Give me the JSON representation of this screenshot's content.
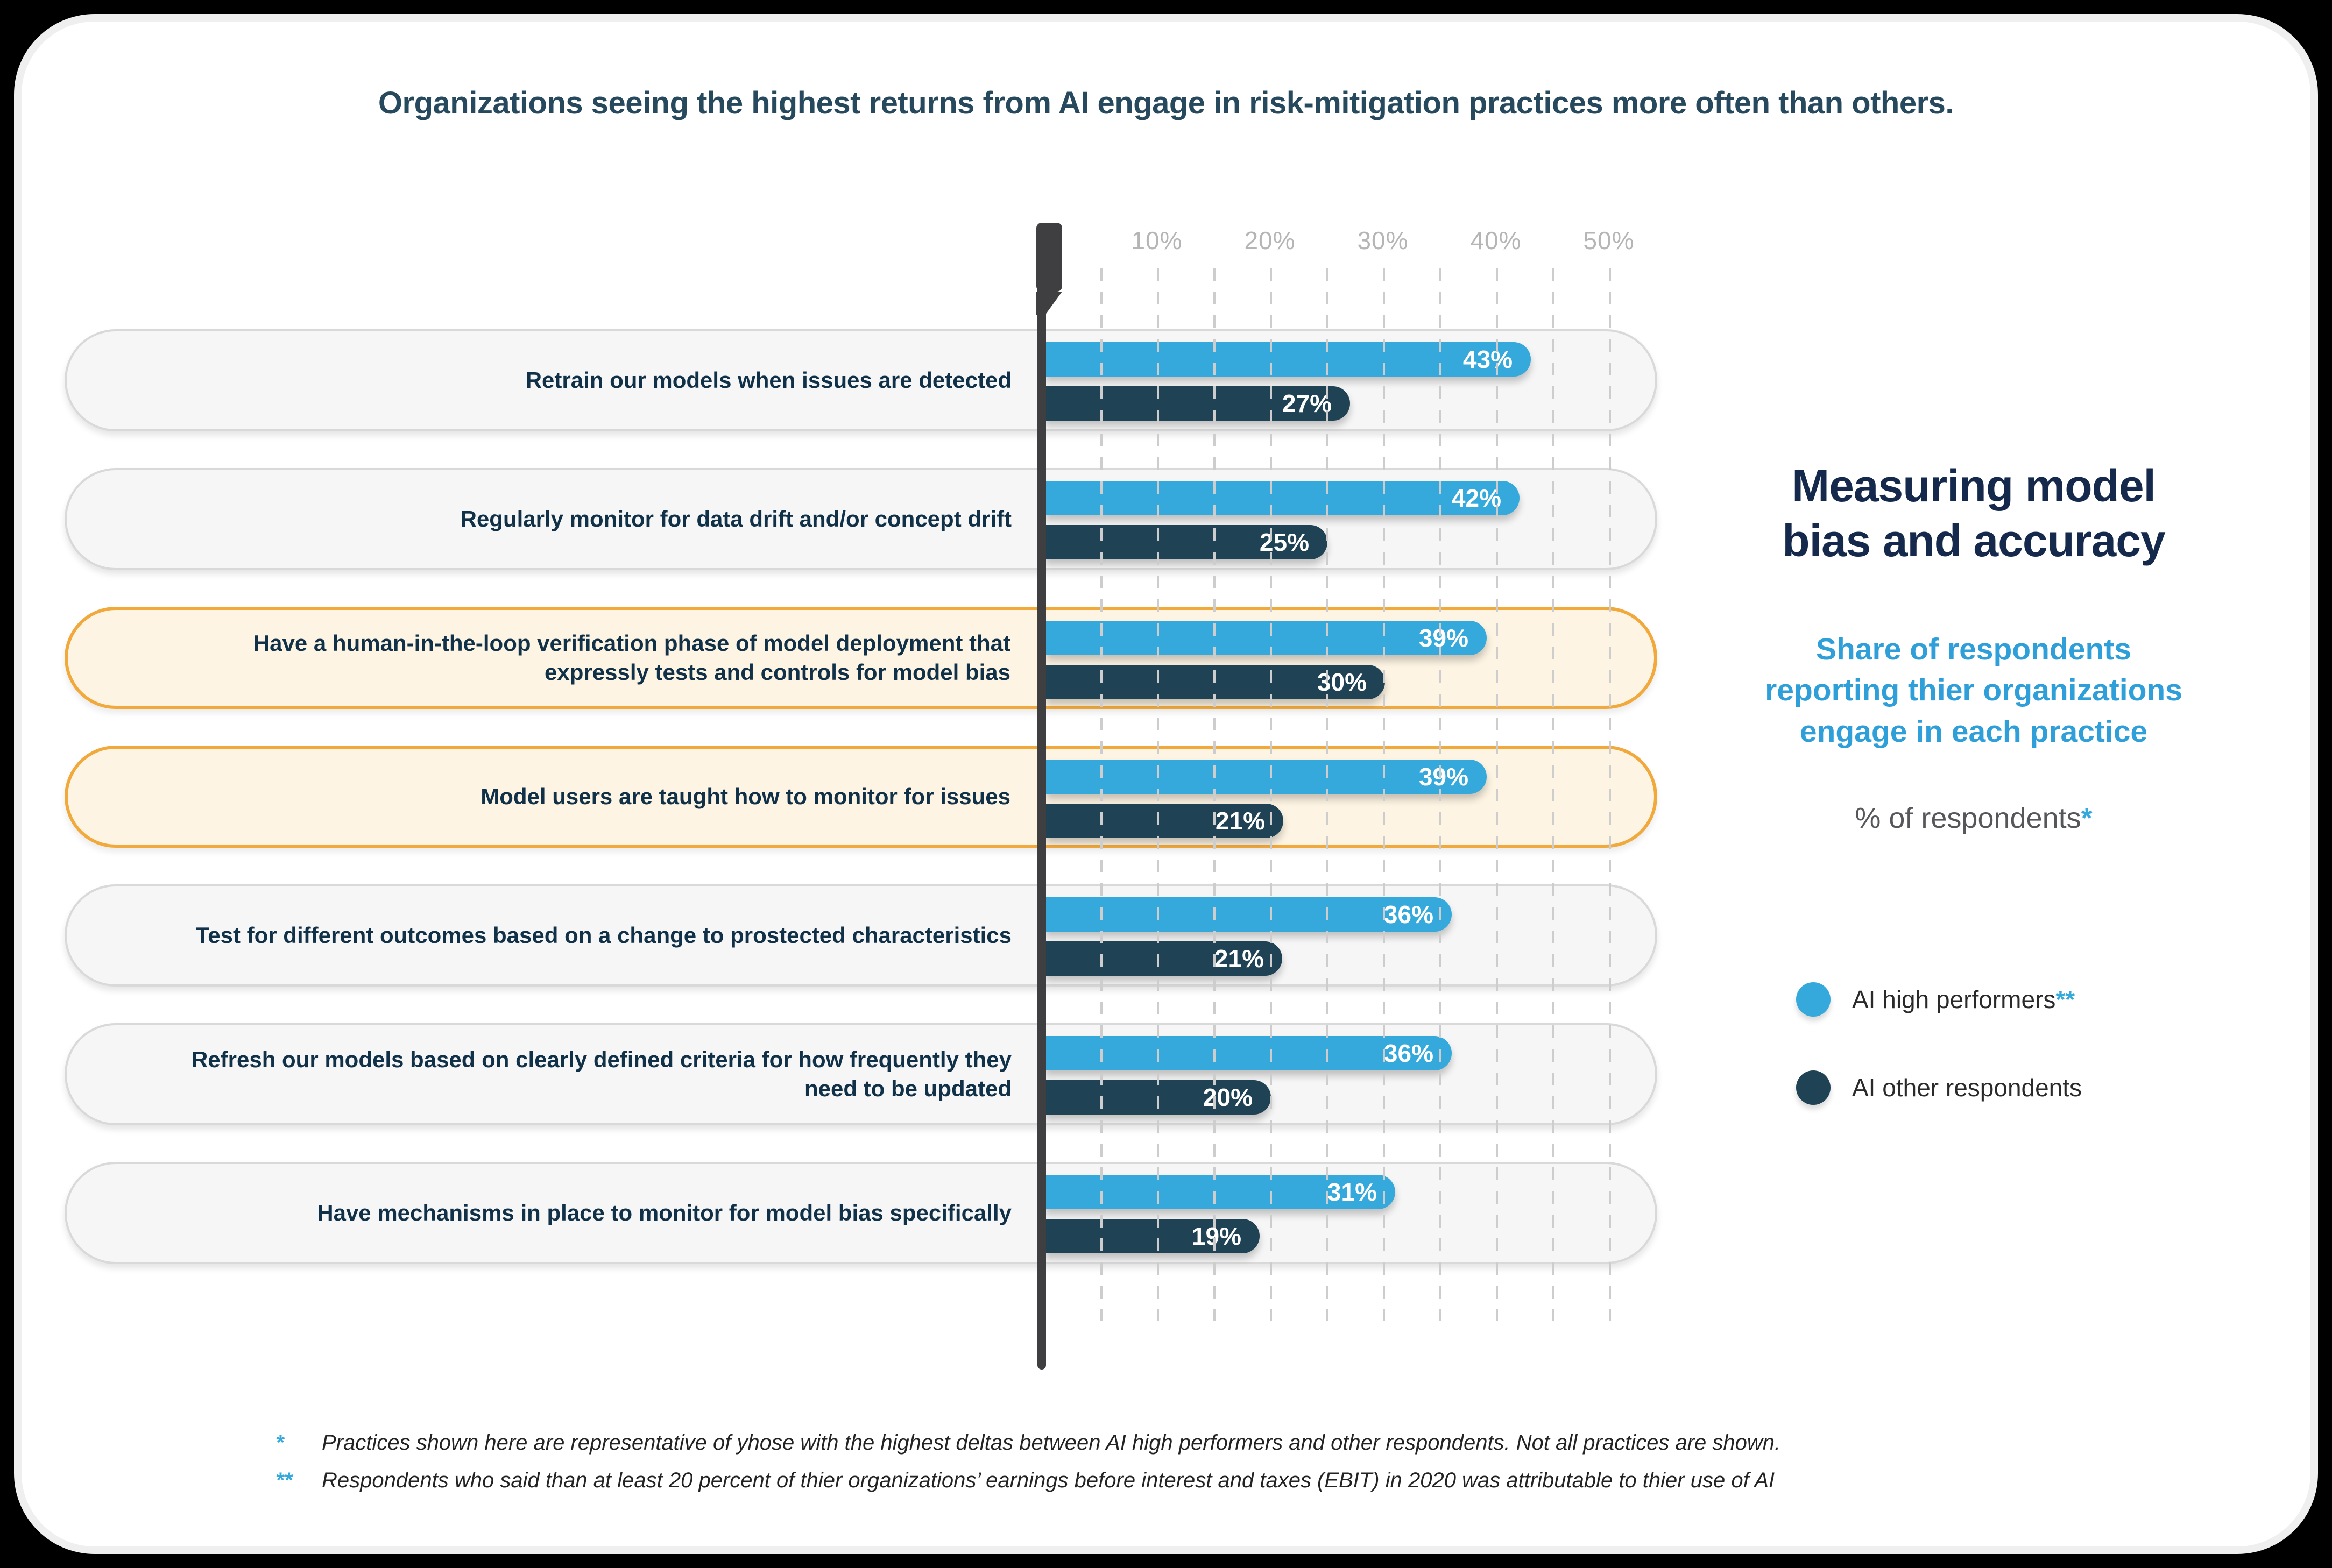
{
  "title": "Organizations seeing the highest returns from AI engage in risk-mitigation practices more often than others.",
  "chart_data": {
    "type": "bar",
    "orientation": "horizontal",
    "unit": "%",
    "title": "Organizations seeing the highest returns from AI engage in risk-mitigation practices more often than others.",
    "xlabel": "% of respondents",
    "ylabel": "",
    "axis": {
      "tick_labels": [
        "10%",
        "20%",
        "30%",
        "40%",
        "50%"
      ],
      "tick_values": [
        10,
        20,
        30,
        40,
        50
      ],
      "minor_gridline_step": 5,
      "max": 50,
      "gridline_style": "dashed"
    },
    "categories": [
      "Retrain our models when issues are detected",
      "Regularly monitor for data drift and/or concept drift",
      "Have a human-in-the-loop verification phase of model deployment that expressly tests and controls for model bias",
      "Model users are taught how to monitor for issues",
      "Test for different outcomes based on a change to prostected characteristics",
      "Refresh our models based on clearly defined criteria for how frequently they need to be updated",
      "Have mechanisms in place to monitor for model bias specifically"
    ],
    "series": [
      {
        "name": "AI high performers",
        "color": "#35A9DC",
        "values": [
          43,
          42,
          39,
          39,
          36,
          36,
          31
        ]
      },
      {
        "name": "AI other respondents",
        "color": "#1F4254",
        "values": [
          27,
          25,
          30,
          21,
          21,
          20,
          19
        ]
      }
    ],
    "highlighted_rows": [
      2,
      3
    ],
    "legend_position": "right"
  },
  "side_panel": {
    "heading_lines": [
      "Measuring model",
      "bias and accuracy"
    ],
    "subtitle_lines": [
      "Share of respondents",
      "reporting thier organizations",
      "engage in each practice"
    ],
    "axis_note": "% of respondents",
    "axis_note_mark": "*",
    "legend": [
      {
        "label": "AI high performers",
        "mark": "**",
        "color": "#35A9DC"
      },
      {
        "label": "AI other respondents",
        "mark": "",
        "color": "#1F4254"
      }
    ]
  },
  "footnotes": [
    {
      "marker": "*",
      "text": "Practices shown here are representative of yhose with the highest deltas between AI high performers and other respondents. Not all practices are shown."
    },
    {
      "marker": "**",
      "text": "Respondents who said than at least 20 percent of thier organizations’ earnings before interest and taxes (EBIT) in 2020 was attributable to thier use of AI"
    }
  ],
  "colors": {
    "accent_blue": "#35A9DC",
    "subtitle_blue": "#2E9FD9",
    "navy_bar": "#1F4254",
    "heading_navy": "#14294B",
    "title_teal": "#26495E",
    "row_label_navy": "#113149",
    "highlight_orange": "#F2A93B",
    "highlight_bg": "#FDF4E3",
    "pill_bg": "#F6F6F6",
    "pill_border": "#D9D9D9",
    "axis_gray": "#3F3F41",
    "tick_gray": "#B5B5B5"
  }
}
